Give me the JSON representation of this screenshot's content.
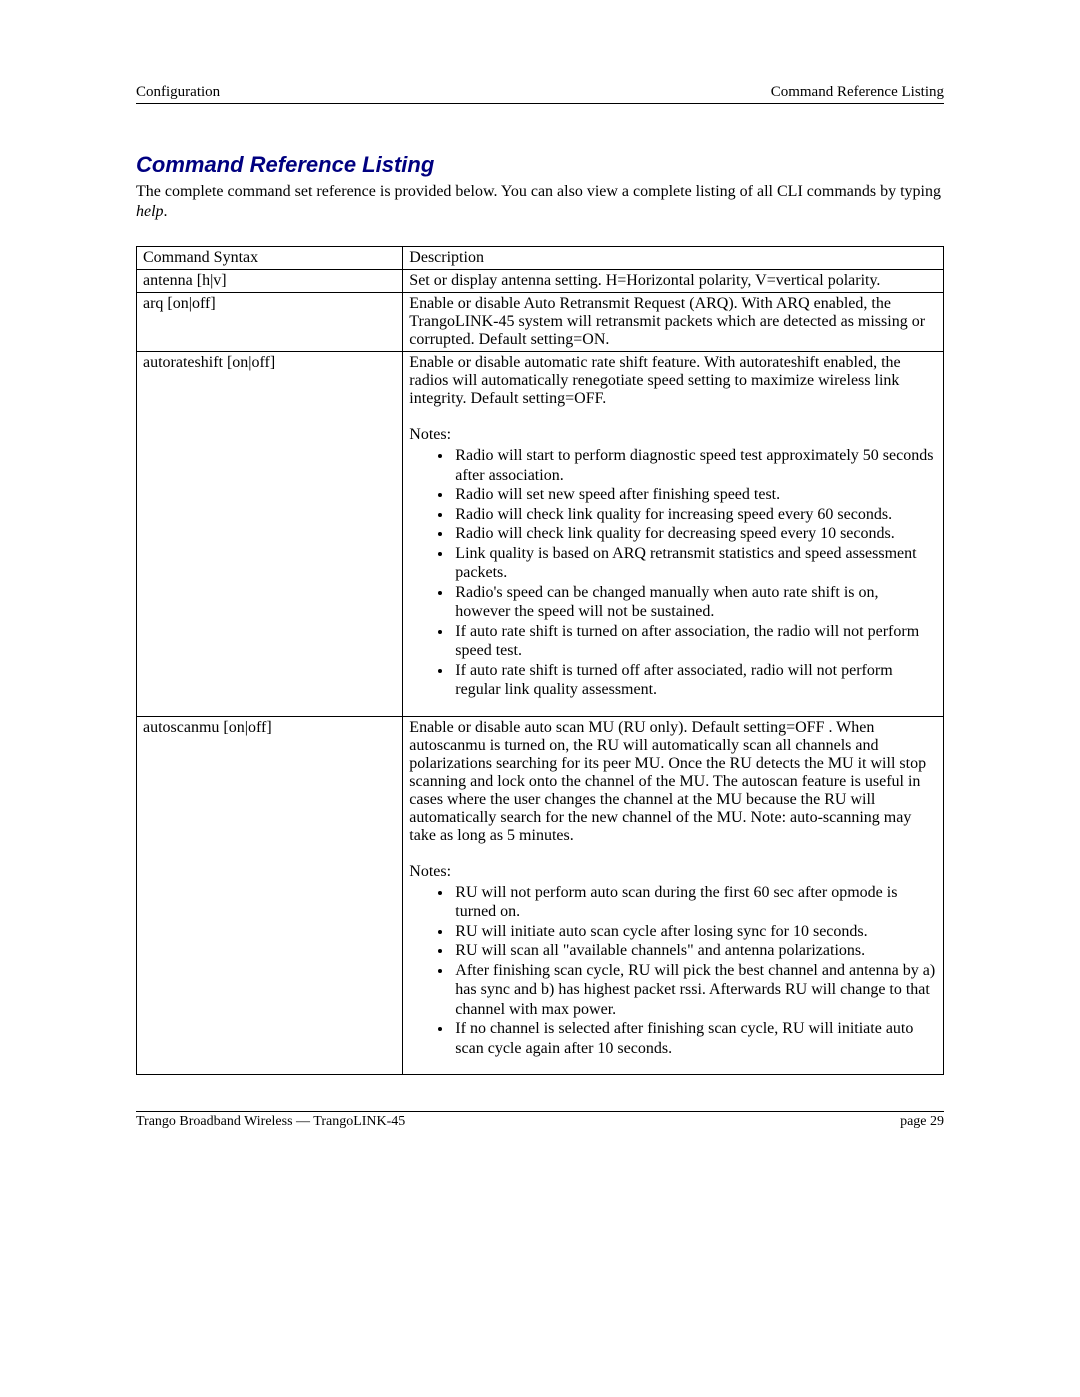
{
  "header": {
    "left": "Configuration",
    "right": "Command Reference Listing"
  },
  "section": {
    "title": "Command Reference Listing",
    "intro_prefix": "The complete command set reference is provided below.  You can also view a complete listing of all CLI commands by typing ",
    "intro_help": "help",
    "intro_suffix": "."
  },
  "table": {
    "headers": {
      "syntax": "Command Syntax",
      "description": "Description"
    },
    "rows": {
      "antenna": {
        "syntax": "antenna [h|v]",
        "desc": "Set or display antenna setting.  H=Horizontal polarity, V=vertical polarity."
      },
      "arq": {
        "syntax": "arq [on|off]",
        "desc": "Enable or disable Auto Retransmit Request (ARQ).  With ARQ enabled, the TrangoLINK-45 system will retransmit packets which are detected as missing or corrupted.  Default setting=ON."
      },
      "autorateshift": {
        "syntax": "autorateshift [on|off]",
        "desc": "Enable or disable automatic rate shift feature.  With autorateshift enabled, the radios will automatically renegotiate speed setting to maximize wireless link integrity.  Default setting=OFF.",
        "notes_label": "Notes:",
        "notes": [
          "Radio will  start to perform diagnostic speed test approximately 50 seconds after  association.",
          "Radio will set new speed after finishing speed test.",
          "Radio will check link quality for increasing speed every 60 seconds.",
          "Radio will check link quality for decreasing speed every 10 seconds.",
          "Link quality is based on ARQ retransmit statistics and speed assessment packets.",
          "Radio's speed can be changed manually when auto rate shift is on, however the speed will not be sustained.",
          "If auto rate shift is turned on after association, the radio will not perform speed test.",
          "If auto rate shift is turned off after associated, radio will not perform regular link quality assessment."
        ]
      },
      "autoscanmu": {
        "syntax": "autoscanmu [on|off]",
        "desc": "Enable or disable auto scan MU (RU only).   Default setting=OFF .  When autoscanmu is turned on, the RU will automatically scan all channels and polarizations searching for its peer MU.  Once the RU detects the MU it will stop scanning and lock onto the channel of the MU.  The autoscan feature is useful in cases where the user changes the channel at the MU because the RU will automatically search for the new channel of the MU.  Note:  auto-scanning may take as long as 5 minutes.",
        "notes_label": "Notes:",
        "notes": [
          "RU will not perform auto scan during the first 60 sec after opmode is turned on.",
          "RU will initiate auto scan cycle after losing sync for 10 seconds.",
          "RU will scan all \"available channels\" and antenna polarizations.",
          "After finishing scan cycle, RU will pick the best channel and antenna by a) has sync and b) has highest packet rssi. Afterwards RU will change to that channel with max power.",
          "If no channel is selected after finishing scan cycle, RU will initiate auto scan cycle again after 10 seconds."
        ]
      }
    }
  },
  "footer": {
    "left": "Trango Broadband Wireless — TrangoLINK-45",
    "right": "page 29"
  }
}
